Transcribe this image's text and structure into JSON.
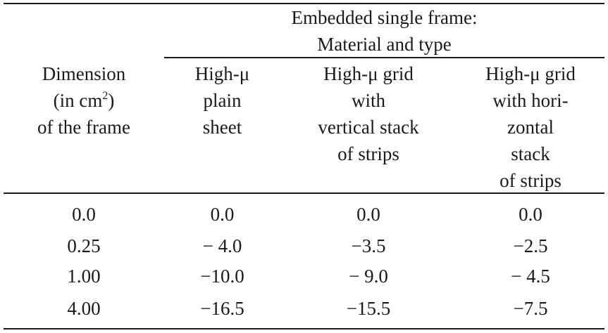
{
  "table": {
    "group_header": [
      "Embedded single frame:",
      "Material and type"
    ],
    "columns": {
      "dimension": {
        "pre": "Dimension",
        "line2_prefix": "(in cm",
        "line2_sup": "2",
        "line2_suffix": ")",
        "line3": "of the frame"
      },
      "plain_sheet": [
        "High-μ",
        "plain",
        "sheet"
      ],
      "vertical_grid": [
        "High-μ grid",
        "with",
        "vertical stack",
        "of strips"
      ],
      "horizontal_grid": [
        "High-μ grid",
        "with hori-",
        "zontal",
        "stack",
        "of strips"
      ]
    },
    "rows": [
      [
        "0.0",
        "0.0",
        "0.0",
        "0.0"
      ],
      [
        "0.25",
        "− 4.0",
        "−3.5",
        "−2.5"
      ],
      [
        "1.00",
        "−10.0",
        "− 9.0",
        "− 4.5"
      ],
      [
        "4.00",
        "−16.5",
        "−15.5",
        "−7.5"
      ]
    ]
  }
}
